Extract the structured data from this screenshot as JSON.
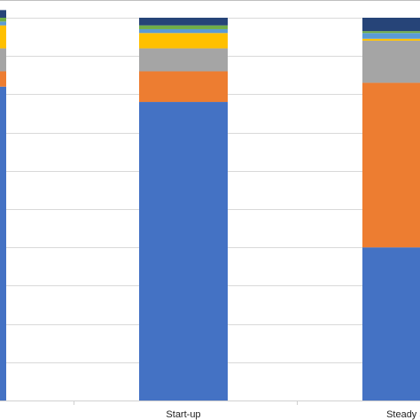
{
  "chart_data": {
    "type": "bar",
    "stacked": true,
    "categories": [
      "",
      "Start-up",
      "Steady st"
    ],
    "ylim": [
      0,
      100
    ],
    "grid": true,
    "series": [
      {
        "color": "#4472C4",
        "values": [
          82,
          78,
          40
        ]
      },
      {
        "color": "#ED7D31",
        "values": [
          4,
          8,
          43
        ]
      },
      {
        "color": "#A5A5A5",
        "values": [
          6,
          6,
          11
        ]
      },
      {
        "color": "#FFC000",
        "values": [
          6,
          4,
          0.5
        ]
      },
      {
        "color": "#5B9BD5",
        "values": [
          1,
          1,
          1.5
        ]
      },
      {
        "color": "#70AD47",
        "values": [
          1,
          1,
          0.5
        ]
      },
      {
        "color": "#264478",
        "values": [
          2,
          2,
          3.5
        ]
      }
    ]
  }
}
